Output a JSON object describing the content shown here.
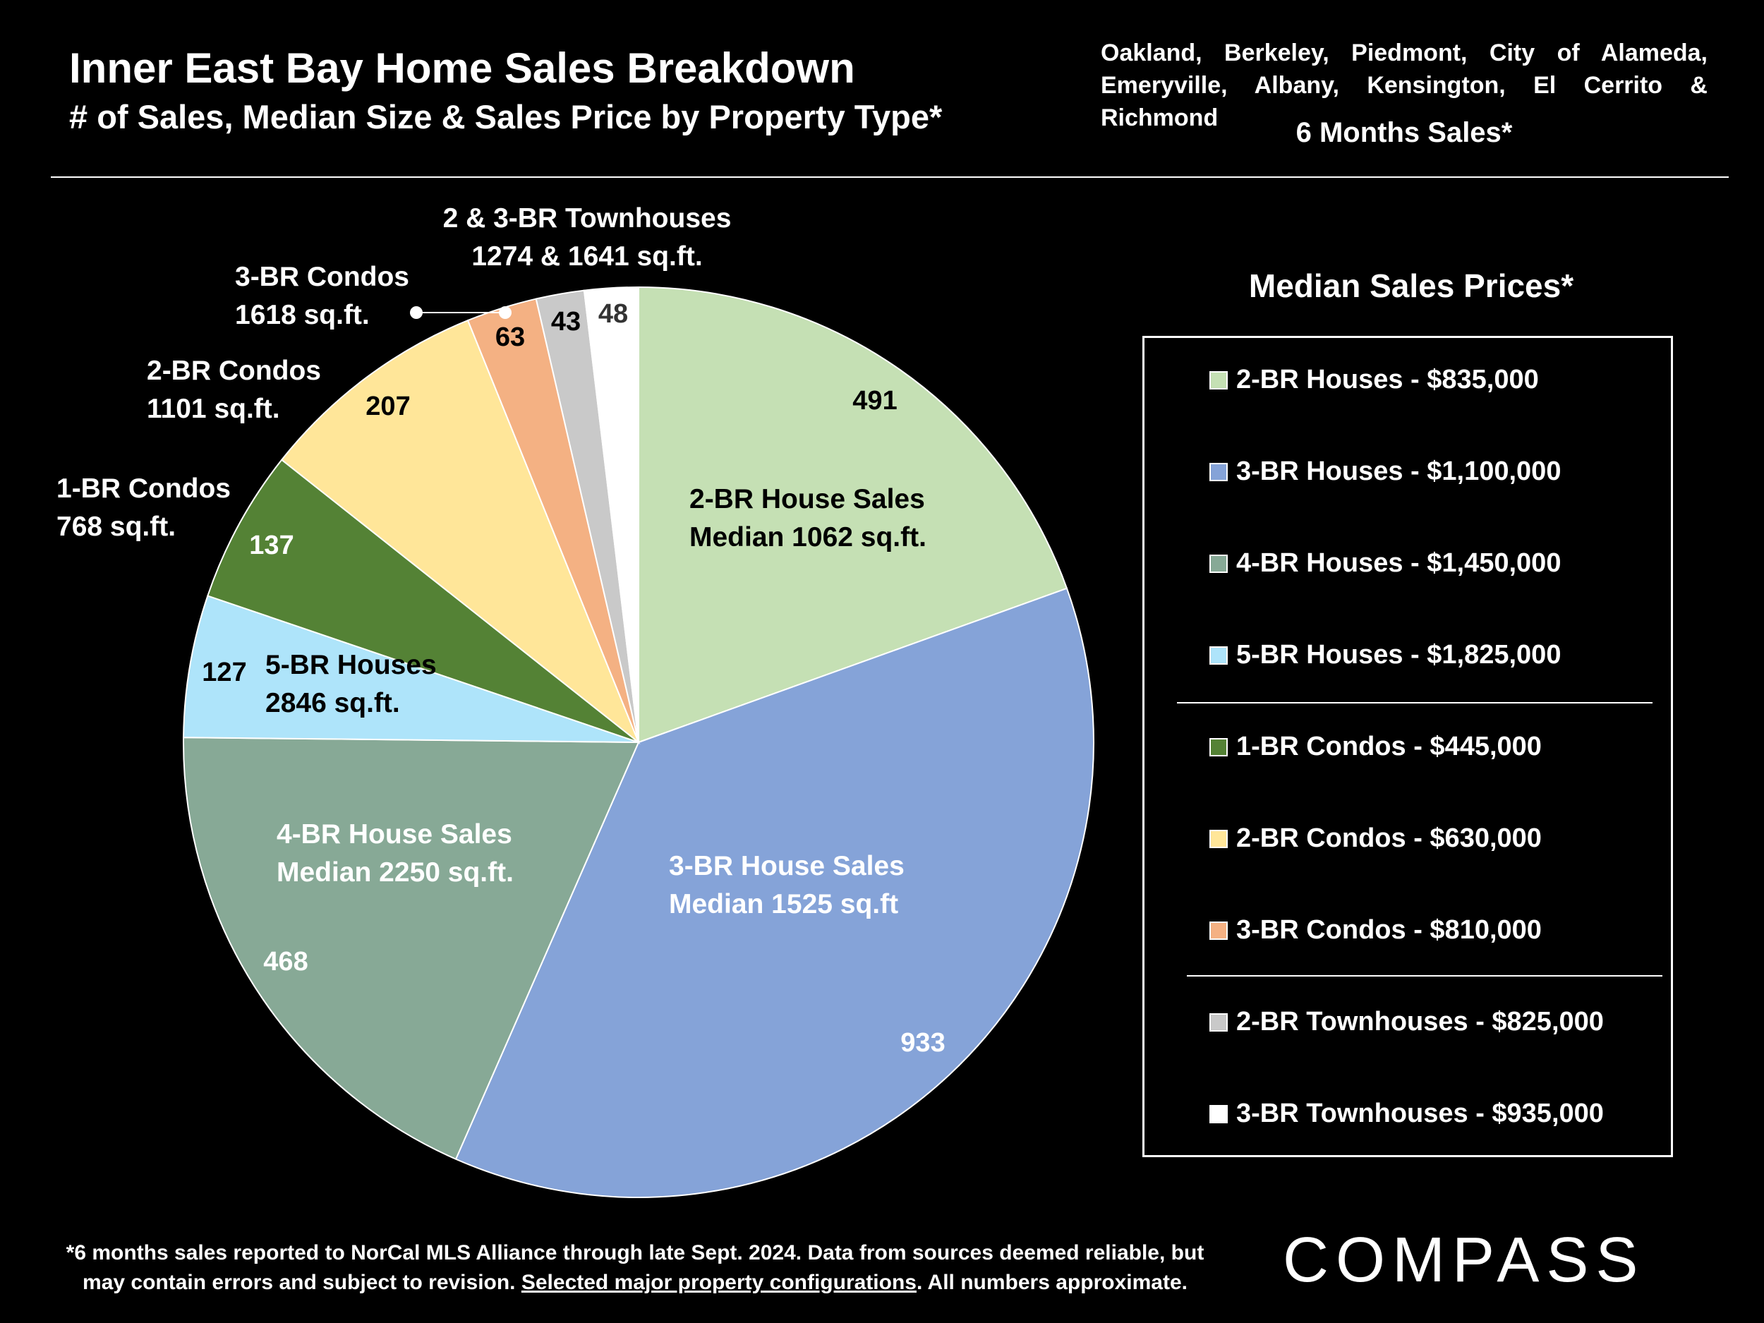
{
  "header": {
    "title": "Inner East Bay Home Sales Breakdown",
    "subtitle": "# of Sales, Median Size & Sales Price by Property Type*",
    "region_line1": "Oakland, Berkeley, Piedmont, City of Alameda,",
    "region_line2": "Emeryville, Albany, Kensington, El Cerrito & Richmond",
    "period": "6 Months Sales*"
  },
  "chart_data": {
    "type": "pie",
    "slices": [
      {
        "key": "2br-house",
        "value": 491,
        "color": "#c5e0b4",
        "label_lines": [
          "2-BR House Sales",
          "Median 1062 sq.ft."
        ],
        "label_color": "#000"
      },
      {
        "key": "3br-house",
        "value": 933,
        "color": "#85a3d8",
        "label_lines": [
          "3-BR House Sales",
          "Median 1525 sq.ft"
        ],
        "label_color": "#fff"
      },
      {
        "key": "4br-house",
        "value": 468,
        "color": "#87a996",
        "label_lines": [
          "4-BR House Sales",
          "Median 2250 sq.ft."
        ],
        "label_color": "#fff"
      },
      {
        "key": "5br-house",
        "value": 127,
        "color": "#aee4fa",
        "label_lines": [
          "5-BR Houses",
          "2846 sq.ft."
        ],
        "label_color": "#000"
      },
      {
        "key": "1br-condo",
        "value": 137,
        "color": "#548235",
        "label_lines": [
          "1-BR Condos",
          "768 sq.ft."
        ],
        "label_color": "#fff"
      },
      {
        "key": "2br-condo",
        "value": 207,
        "color": "#ffe699",
        "label_lines": [
          "2-BR Condos",
          "1101 sq.ft."
        ],
        "label_color": "#fff"
      },
      {
        "key": "3br-condo",
        "value": 63,
        "color": "#f4b183",
        "label_lines": [
          "3-BR Condos",
          "1618 sq.ft."
        ],
        "label_color": "#fff"
      },
      {
        "key": "2br-townhouse",
        "value": 43,
        "color": "#c9c9c9",
        "label_lines": [],
        "label_color": "#fff"
      },
      {
        "key": "3br-townhouse",
        "value": 48,
        "color": "#ffffff",
        "label_lines": [],
        "label_color": "#fff"
      }
    ],
    "townhouse_label_lines": [
      "2 & 3-BR Townhouses",
      "1274 & 1641 sq.ft."
    ]
  },
  "legend": {
    "title": "Median Sales Prices*",
    "items": [
      {
        "label": "2-BR Houses - $835,000",
        "color": "#c5e0b4"
      },
      {
        "label": "3-BR Houses - $1,100,000",
        "color": "#85a3d8"
      },
      {
        "label": "4-BR Houses - $1,450,000",
        "color": "#87a996"
      },
      {
        "label": "5-BR Houses - $1,825,000",
        "color": "#aee4fa"
      },
      {
        "label": "1-BR Condos - $445,000",
        "color": "#548235"
      },
      {
        "label": "2-BR Condos - $630,000",
        "color": "#ffe699"
      },
      {
        "label": "3-BR Condos - $810,000",
        "color": "#f4b183"
      },
      {
        "label": "2-BR Townhouses - $825,000",
        "color": "#c9c9c9"
      },
      {
        "label": "3-BR Townhouses - $935,000",
        "color": "#ffffff"
      }
    ]
  },
  "footnote": {
    "line1": "*6 months sales reported to NorCal MLS Alliance through late Sept.  2024. Data from sources deemed reliable, but",
    "line2_a": "may contain errors and subject to revision. ",
    "line2_link": "Selected major property configurations",
    "line2_b": ". All numbers approximate."
  },
  "logo": "COMPASS"
}
